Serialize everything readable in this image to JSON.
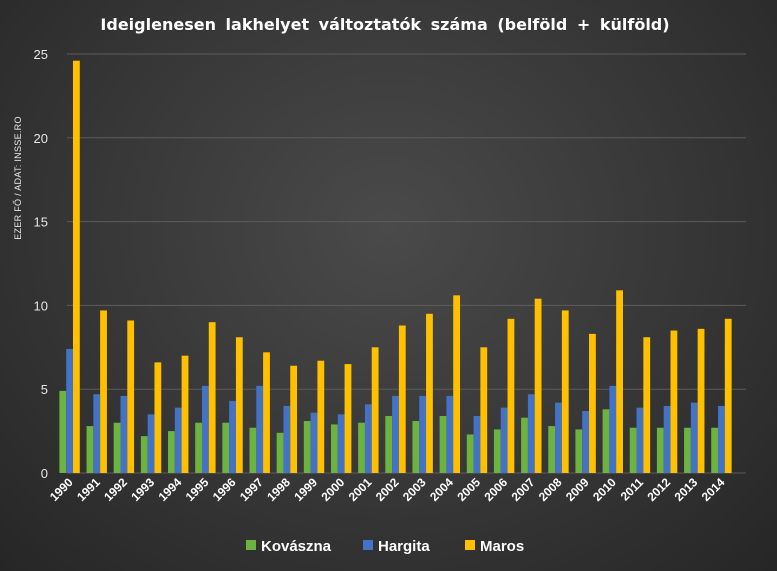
{
  "chart_data": {
    "type": "bar",
    "title": "Ideiglenesen lakhelyet változtatók száma (belföld + külföld)",
    "ylabel": "EZER FŐ / ADAT: INSSE.RO",
    "xlabel": "",
    "ylim": [
      0,
      25
    ],
    "yticks": [
      0,
      5,
      10,
      15,
      20,
      25
    ],
    "grid": true,
    "legend_position": "bottom",
    "categories": [
      "1990",
      "1991",
      "1992",
      "1993",
      "1994",
      "1995",
      "1996",
      "1997",
      "1998",
      "1999",
      "2000",
      "2001",
      "2002",
      "2003",
      "2004",
      "2005",
      "2006",
      "2007",
      "2008",
      "2009",
      "2010",
      "2011",
      "2012",
      "2013",
      "2014"
    ],
    "series": [
      {
        "name": "Kovászna",
        "color": "#6db33f",
        "values": [
          4.9,
          2.8,
          3.0,
          2.2,
          2.5,
          3.0,
          3.0,
          2.7,
          2.4,
          3.1,
          2.9,
          3.0,
          3.4,
          3.1,
          3.4,
          2.3,
          2.6,
          3.3,
          2.8,
          2.6,
          3.8,
          2.7,
          2.7,
          2.7,
          2.7
        ]
      },
      {
        "name": "Hargita",
        "color": "#4472c4",
        "values": [
          7.4,
          4.7,
          4.6,
          3.5,
          3.9,
          5.2,
          4.3,
          5.2,
          4.0,
          3.6,
          3.5,
          4.1,
          4.6,
          4.6,
          4.6,
          3.4,
          3.9,
          4.7,
          4.2,
          3.7,
          5.2,
          3.9,
          4.0,
          4.2,
          4.0
        ]
      },
      {
        "name": "Maros",
        "color": "#ffc000",
        "values": [
          24.6,
          9.7,
          9.1,
          6.6,
          7.0,
          9.0,
          8.1,
          7.2,
          6.4,
          6.7,
          6.5,
          7.5,
          8.8,
          9.5,
          10.6,
          7.5,
          9.2,
          10.4,
          9.7,
          8.3,
          10.9,
          8.1,
          8.5,
          8.6,
          9.2
        ]
      }
    ]
  }
}
